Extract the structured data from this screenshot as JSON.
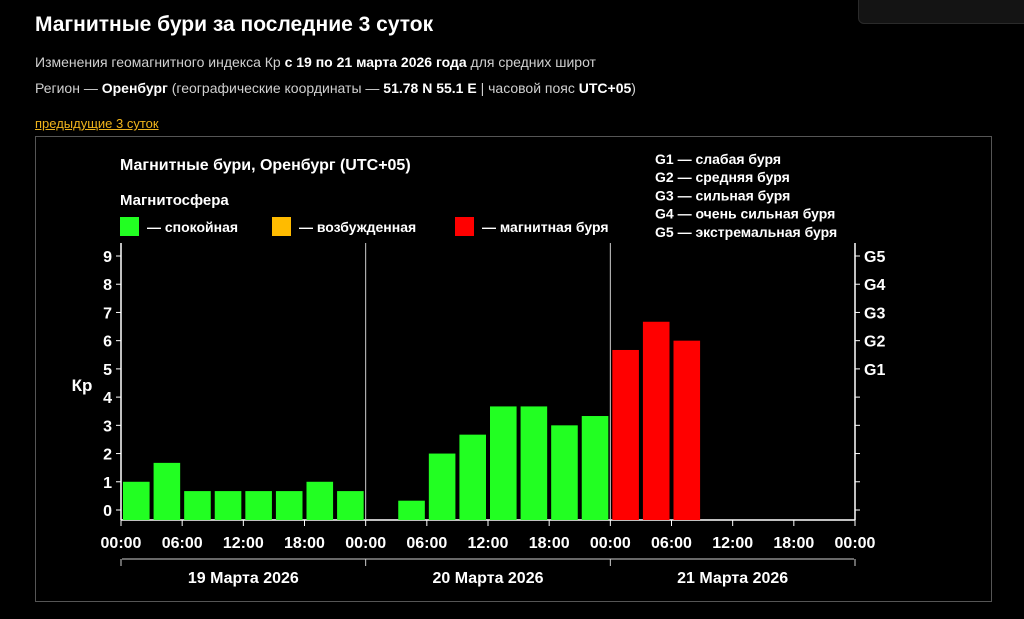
{
  "header": {
    "title": "Магнитные бури за последние 3 суток",
    "line1_pre": "Изменения геомагнитного индекса Кр ",
    "line1_bold": "с 19 по 21 марта 2026 года",
    "line1_post": " для средних широт",
    "line2_pre": "Регион — ",
    "line2_region": "Оренбург",
    "line2_mid": " (географические координаты — ",
    "line2_coords": "51.78 N 55.1 E",
    "line2_mid2": " | часовой пояс ",
    "line2_tz": "UTC+05",
    "line2_post": ")",
    "prev_link": "предыдущие 3 суток"
  },
  "chart_data": {
    "type": "bar",
    "title": "Магнитные бури, Оренбург (UTC+05)",
    "ylabel": "Кр",
    "ylim": [
      0,
      9
    ],
    "yticks": [
      "0",
      "1",
      "2",
      "3",
      "4",
      "5",
      "6",
      "7",
      "8",
      "9"
    ],
    "gscale": [
      "G1",
      "G2",
      "G3",
      "G4",
      "G5"
    ],
    "legend_title": "Магнитосфера",
    "legend": [
      {
        "label": "— спокойная",
        "color": "#22ff22"
      },
      {
        "label": "— возбужденная",
        "color": "#ffbb00"
      },
      {
        "label": "— магнитная буря",
        "color": "#ff0000"
      }
    ],
    "glegend": [
      "G1 — слабая буря",
      "G2 — средняя буря",
      "G3 — сильная буря",
      "G4 — очень сильная буря",
      "G5 — экстремальная буря"
    ],
    "xticks": [
      "00:00",
      "06:00",
      "12:00",
      "18:00",
      "00:00",
      "06:00",
      "12:00",
      "18:00",
      "00:00",
      "06:00",
      "12:00",
      "18:00",
      "00:00"
    ],
    "days": [
      "19 Марта 2026",
      "20 Марта 2026",
      "21 Марта 2026"
    ],
    "values": [
      1.0,
      1.67,
      0.67,
      0.67,
      0.67,
      0.67,
      1.0,
      0.67,
      null,
      0.33,
      2.0,
      2.67,
      3.67,
      3.67,
      3.0,
      3.33,
      5.67,
      6.67,
      6.0,
      null,
      null,
      null,
      null,
      null
    ],
    "status": [
      "quiet",
      "quiet",
      "quiet",
      "quiet",
      "quiet",
      "quiet",
      "quiet",
      "quiet",
      null,
      "quiet",
      "quiet",
      "quiet",
      "quiet",
      "quiet",
      "quiet",
      "quiet",
      "storm",
      "storm",
      "storm",
      null,
      null,
      null,
      null,
      null
    ],
    "colors": {
      "quiet": "#22ff22",
      "active": "#ffbb00",
      "storm": "#ff0000"
    }
  }
}
